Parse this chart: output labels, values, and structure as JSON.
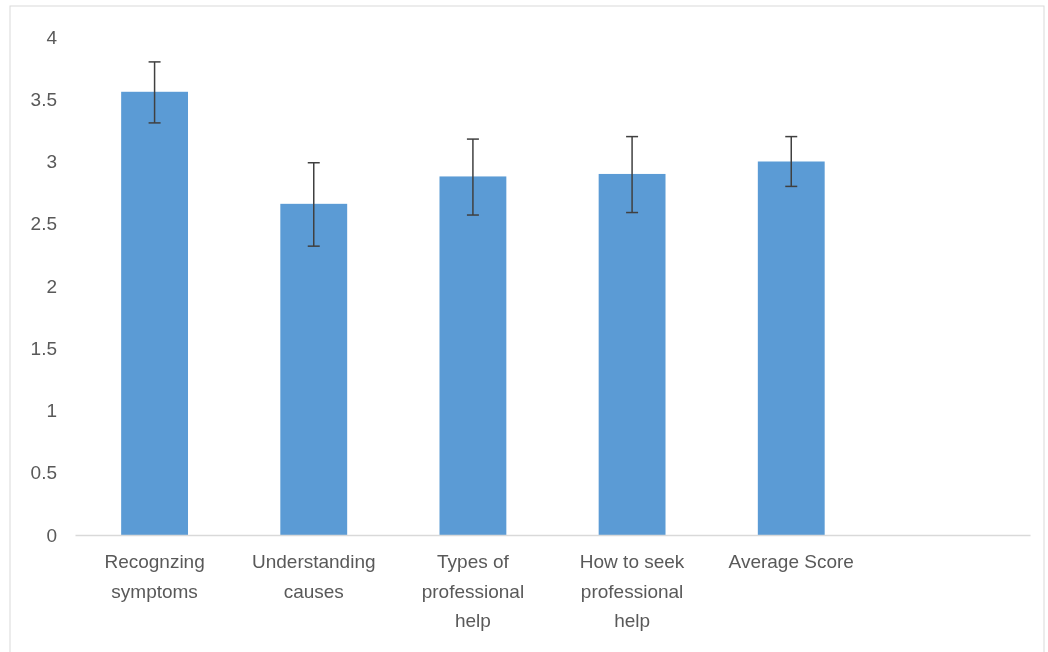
{
  "chart_data": {
    "type": "bar",
    "categories": [
      "Recognzing symptoms",
      "Understanding causes",
      "Types of professional help",
      "How to seek professional help",
      "Average Score",
      null
    ],
    "values": [
      3.56,
      2.66,
      2.88,
      2.9,
      3.0,
      null
    ],
    "errors": [
      [
        3.31,
        3.8
      ],
      [
        2.32,
        2.99
      ],
      [
        2.57,
        3.18
      ],
      [
        2.59,
        3.2
      ],
      [
        2.8,
        3.2
      ],
      null
    ],
    "color": "#5b9bd5",
    "ylim": [
      0,
      4
    ],
    "yticks": [
      0,
      0.5,
      1,
      1.5,
      2,
      2.5,
      3,
      3.5,
      4
    ],
    "grid": false
  }
}
